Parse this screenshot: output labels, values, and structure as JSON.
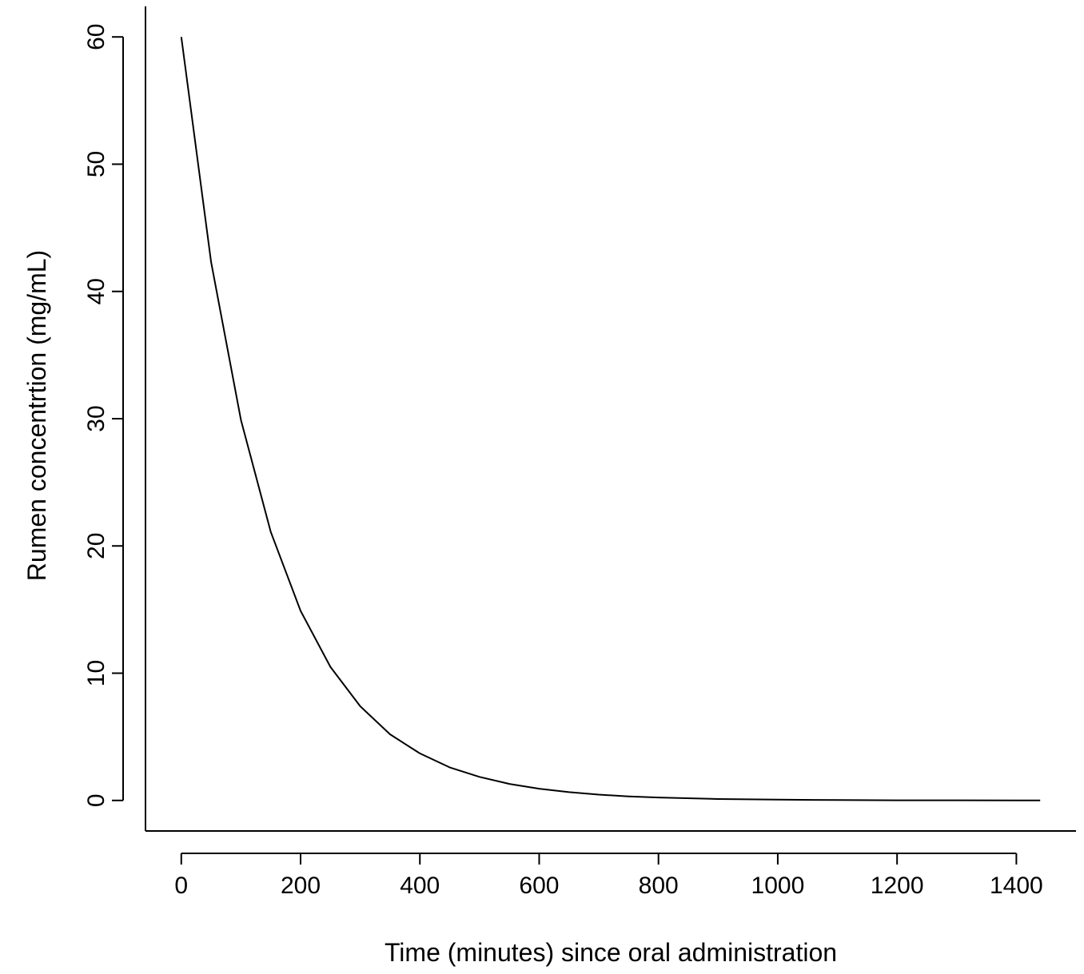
{
  "chart_data": {
    "type": "line",
    "title": "",
    "xlabel": "Time (minutes) since oral administration",
    "ylabel": "Rumen concentrtion (mg/mL)",
    "xlim": [
      -60,
      1500
    ],
    "ylim": [
      -2.4,
      62.4
    ],
    "xticks": [
      0,
      200,
      400,
      600,
      800,
      1000,
      1200,
      1400
    ],
    "yticks": [
      0,
      10,
      20,
      30,
      40,
      50,
      60
    ],
    "grid": false,
    "legend": "none",
    "line_color": "#000000",
    "series": [
      {
        "x": [
          0,
          50,
          100,
          150,
          200,
          250,
          300,
          350,
          400,
          450,
          500,
          550,
          600,
          650,
          700,
          750,
          800,
          900,
          1000,
          1100,
          1200,
          1300,
          1440
        ],
        "values": [
          60,
          42.3,
          29.9,
          21.1,
          14.9,
          10.5,
          7.4,
          5.2,
          3.7,
          2.6,
          1.85,
          1.3,
          0.92,
          0.65,
          0.46,
          0.32,
          0.23,
          0.11,
          0.06,
          0.03,
          0.01,
          0.01,
          0.0
        ]
      }
    ]
  }
}
